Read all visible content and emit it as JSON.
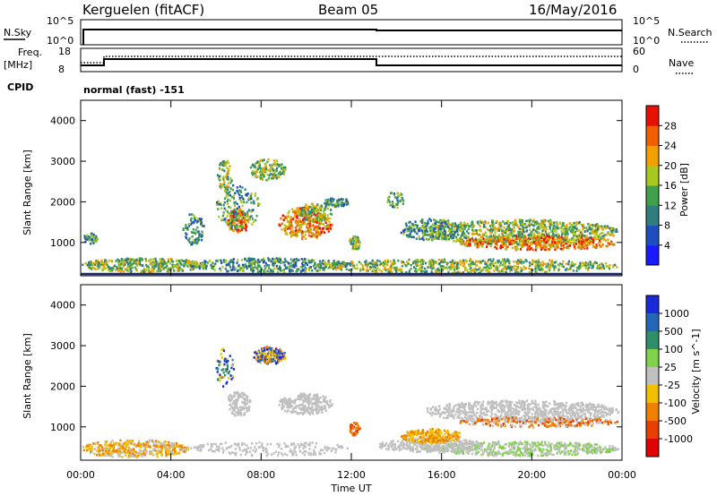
{
  "header": {
    "station": "Kerguelen (fitACF)",
    "beam": "Beam 05",
    "date": "16/May/2016"
  },
  "top_panels": {
    "nsky_label": "N.Sky",
    "nsky_ticks": [
      "10^5",
      "10^0"
    ],
    "nsearch_label": "N.Search",
    "nsearch_ticks": [
      "10^5",
      "10^0"
    ],
    "freq_label_1": "Freq.",
    "freq_label_2": "[MHz]",
    "freq_ticks": [
      "18",
      "8"
    ],
    "nave_label": "Nave",
    "nave_ticks": [
      "60",
      "0"
    ],
    "cpid_label": "CPID",
    "cpid_value": "normal (fast) -151"
  },
  "chart_data": [
    {
      "type": "heatmap",
      "title": "",
      "ylabel": "Slant Range [km]",
      "xlabel": "",
      "y_ticks": [
        "1000",
        "2000",
        "3000",
        "4000"
      ],
      "x_ticks": [
        "00:00",
        "04:00",
        "08:00",
        "12:00",
        "16:00",
        "20:00",
        "00:00"
      ],
      "ylim": [
        180,
        4500
      ],
      "colorbar_label": "Power [dB]",
      "colorbar_ticks": [
        "4",
        "8",
        "12",
        "16",
        "20",
        "24",
        "28"
      ],
      "colorbar_colors": [
        "#1a1aff",
        "#1f4fbf",
        "#2f7f7f",
        "#3fa04a",
        "#a8c820",
        "#f0a000",
        "#f06000",
        "#e81000"
      ]
    },
    {
      "type": "heatmap",
      "title": "",
      "ylabel": "Slant Range [km]",
      "xlabel": "Time UT",
      "y_ticks": [
        "1000",
        "2000",
        "3000",
        "4000"
      ],
      "x_ticks": [
        "00:00",
        "04:00",
        "08:00",
        "12:00",
        "16:00",
        "20:00",
        "00:00"
      ],
      "ylim": [
        180,
        4500
      ],
      "colorbar_label": "Velocity [m s^-1]",
      "colorbar_ticks": [
        "1000",
        "500",
        "100",
        "25",
        "-25",
        "-100",
        "-500",
        "-1000"
      ],
      "colorbar_colors": [
        "#1a2ad8",
        "#2466b8",
        "#2f8f6a",
        "#7fd24a",
        "#c0c0c0",
        "#f0c000",
        "#f08000",
        "#e84000",
        "#e00000"
      ]
    }
  ]
}
